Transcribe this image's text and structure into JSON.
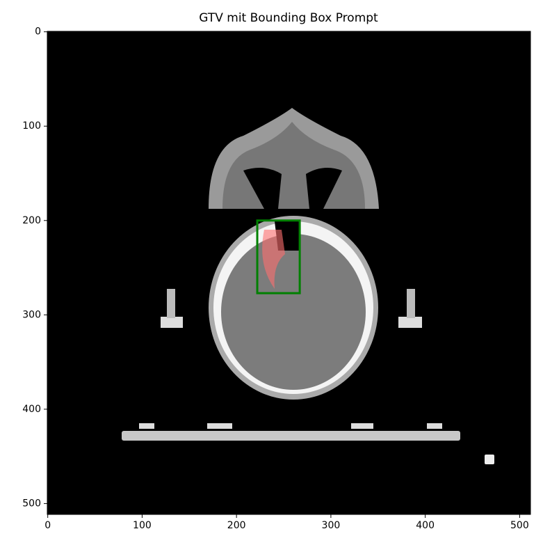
{
  "chart_data": {
    "type": "image",
    "title": "GTV mit Bounding Box Prompt",
    "xlim": [
      -0.5,
      511.5
    ],
    "ylim": [
      511.5,
      -0.5
    ],
    "xticks": [
      0,
      100,
      200,
      300,
      400,
      500
    ],
    "yticks": [
      0,
      100,
      200,
      300,
      400,
      500
    ],
    "bbox": {
      "x0": 222,
      "y0": 200,
      "x1": 267,
      "y1": 277,
      "color": "green"
    },
    "mask_color": "#ff6f6f"
  }
}
